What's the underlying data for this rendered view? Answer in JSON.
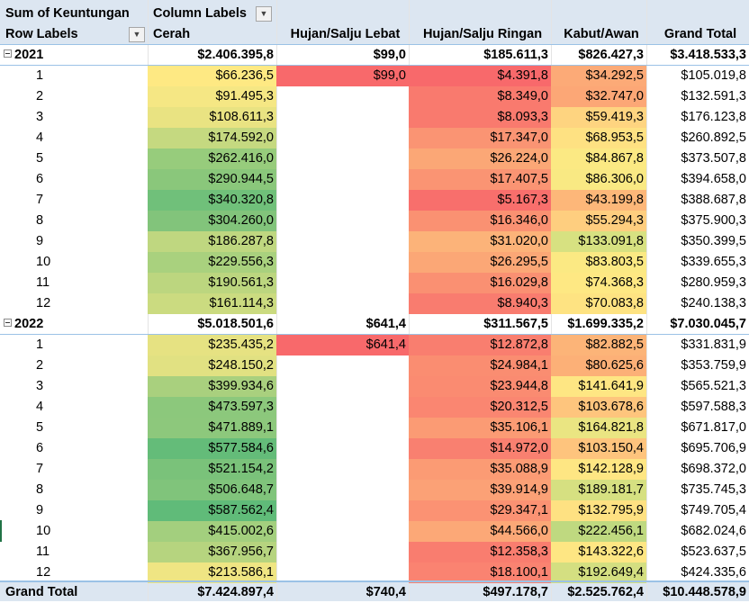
{
  "header": {
    "values_label": "Sum of Keuntungan",
    "column_labels": "Column Labels",
    "row_labels": "Row Labels",
    "columns": [
      "Cerah",
      "Hujan/Salju Lebat",
      "Hujan/Salju Ringan",
      "Kabut/Awan",
      "Grand Total"
    ]
  },
  "groups": [
    {
      "year": "2021",
      "totals": [
        "$2.406.395,8",
        "$99,0",
        "$185.611,3",
        "$826.427,3",
        "$3.418.533,3"
      ],
      "rows": [
        {
          "label": "1",
          "v": [
            "$66.236,5",
            "$99,0",
            "$4.391,8",
            "$34.292,5",
            "$105.019,8"
          ],
          "c": [
            "#fee983",
            "#f8696b",
            "#f8696b",
            "#fcaa77",
            ""
          ]
        },
        {
          "label": "2",
          "v": [
            "$91.495,3",
            "",
            "$8.349,0",
            "$32.747,0",
            "$132.591,3"
          ],
          "c": [
            "#f5e784",
            "",
            "#f97a6e",
            "#fca776",
            ""
          ]
        },
        {
          "label": "3",
          "v": [
            "$108.611,3",
            "",
            "$8.093,3",
            "$59.419,3",
            "$176.123,8"
          ],
          "c": [
            "#e9e382",
            "",
            "#f97a6e",
            "#fed480",
            ""
          ]
        },
        {
          "label": "4",
          "v": [
            "$174.592,0",
            "",
            "$17.347,0",
            "$68.953,5",
            "$260.892,5"
          ],
          "c": [
            "#c5d980",
            "",
            "#fa9473",
            "#fee182",
            ""
          ]
        },
        {
          "label": "5",
          "v": [
            "$262.416,0",
            "",
            "$26.224,0",
            "$84.867,8",
            "$373.507,8"
          ],
          "c": [
            "#97cc7c",
            "",
            "#fba776",
            "#fbe983",
            ""
          ]
        },
        {
          "label": "6",
          "v": [
            "$290.944,5",
            "",
            "$17.407,5",
            "$86.306,0",
            "$394.658,0"
          ],
          "c": [
            "#8ac77b",
            "",
            "#fa9473",
            "#f9e983",
            ""
          ]
        },
        {
          "label": "7",
          "v": [
            "$340.320,8",
            "",
            "$5.167,3",
            "$43.199,8",
            "$388.687,8"
          ],
          "c": [
            "#70c07a",
            "",
            "#f86f6c",
            "#fdb779",
            ""
          ]
        },
        {
          "label": "8",
          "v": [
            "$304.260,0",
            "",
            "$16.346,0",
            "$55.294,3",
            "$375.900,3"
          ],
          "c": [
            "#82c47b",
            "",
            "#fa9172",
            "#fece7f",
            ""
          ]
        },
        {
          "label": "9",
          "v": [
            "$186.287,8",
            "",
            "$31.020,0",
            "$133.091,8",
            "$350.399,5"
          ],
          "c": [
            "#bfd780",
            "",
            "#fcb379",
            "#d7e181",
            ""
          ]
        },
        {
          "label": "10",
          "v": [
            "$229.556,3",
            "",
            "$26.295,5",
            "$83.803,5",
            "$339.655,3"
          ],
          "c": [
            "#a9d17e",
            "",
            "#fba776",
            "#fbe983",
            ""
          ]
        },
        {
          "label": "11",
          "v": [
            "$190.561,3",
            "",
            "$16.029,8",
            "$74.368,3",
            "$280.959,3"
          ],
          "c": [
            "#bcd67f",
            "",
            "#fa9072",
            "#fee883",
            ""
          ]
        },
        {
          "label": "12",
          "v": [
            "$161.114,3",
            "",
            "$8.940,3",
            "$70.083,8",
            "$240.138,3"
          ],
          "c": [
            "#cbdb80",
            "",
            "#f97c6f",
            "#fee382",
            ""
          ]
        }
      ]
    },
    {
      "year": "2022",
      "totals": [
        "$5.018.501,6",
        "$641,4",
        "$311.567,5",
        "$1.699.335,2",
        "$7.030.045,7"
      ],
      "rows": [
        {
          "label": "1",
          "v": [
            "$235.435,2",
            "$641,4",
            "$12.872,8",
            "$82.882,5",
            "$331.831,9"
          ],
          "c": [
            "#e6e282",
            "#f8696b",
            "#f97e6f",
            "#fcb478",
            ""
          ]
        },
        {
          "label": "2",
          "v": [
            "$248.150,2",
            "",
            "$24.984,1",
            "$80.625,6",
            "$353.759,9"
          ],
          "c": [
            "#e1e182",
            "",
            "#fa8d71",
            "#fcb077",
            ""
          ]
        },
        {
          "label": "3",
          "v": [
            "$399.934,6",
            "",
            "$23.944,8",
            "$141.641,9",
            "$565.521,3"
          ],
          "c": [
            "#a9d07e",
            "",
            "#fa8b71",
            "#fee683",
            ""
          ]
        },
        {
          "label": "4",
          "v": [
            "$473.597,3",
            "",
            "$20.312,5",
            "$103.678,6",
            "$597.588,3"
          ],
          "c": [
            "#8cc87c",
            "",
            "#fa8671",
            "#fec57d",
            ""
          ]
        },
        {
          "label": "5",
          "v": [
            "$471.889,1",
            "",
            "$35.106,1",
            "$164.821,8",
            "$671.817,0"
          ],
          "c": [
            "#8dc87c",
            "",
            "#fb9b74",
            "#eae582",
            ""
          ]
        },
        {
          "label": "6",
          "v": [
            "$577.584,6",
            "",
            "$14.972,0",
            "$103.150,4",
            "$695.706,9"
          ],
          "c": [
            "#64bc79",
            "",
            "#f98070",
            "#fec47d",
            ""
          ]
        },
        {
          "label": "7",
          "v": [
            "$521.154,2",
            "",
            "$35.088,9",
            "$142.128,9",
            "$698.372,0"
          ],
          "c": [
            "#7ac27a",
            "",
            "#fb9b74",
            "#fee683",
            ""
          ]
        },
        {
          "label": "8",
          "v": [
            "$506.648,7",
            "",
            "$39.914,9",
            "$189.181,7",
            "$735.745,3"
          ],
          "c": [
            "#80c47b",
            "",
            "#fba176",
            "#d6e081",
            ""
          ]
        },
        {
          "label": "9",
          "v": [
            "$587.562,4",
            "",
            "$29.347,1",
            "$132.795,9",
            "$749.705,4"
          ],
          "c": [
            "#60bb79",
            "",
            "#fb9273",
            "#fee182",
            ""
          ]
        },
        {
          "label": "10",
          "v": [
            "$415.002,6",
            "",
            "$44.566,0",
            "$222.456,1",
            "$682.024,6"
          ],
          "c": [
            "#a3cf7e",
            "",
            "#fca877",
            "#bfd980",
            ""
          ]
        },
        {
          "label": "11",
          "v": [
            "$367.956,7",
            "",
            "$12.358,3",
            "$143.322,6",
            "$523.637,5"
          ],
          "c": [
            "#b6d47f",
            "",
            "#f97d6f",
            "#fee683",
            ""
          ]
        },
        {
          "label": "12",
          "v": [
            "$213.586,1",
            "",
            "$18.100,1",
            "$192.649,4",
            "$424.335,6"
          ],
          "c": [
            "#efe583",
            "",
            "#fa8371",
            "#d4df81",
            ""
          ]
        }
      ]
    }
  ],
  "grand_total": {
    "label": "Grand Total",
    "values": [
      "$7.424.897,4",
      "$740,4",
      "$497.178,7",
      "$2.525.762,4",
      "$10.448.578,9"
    ]
  }
}
